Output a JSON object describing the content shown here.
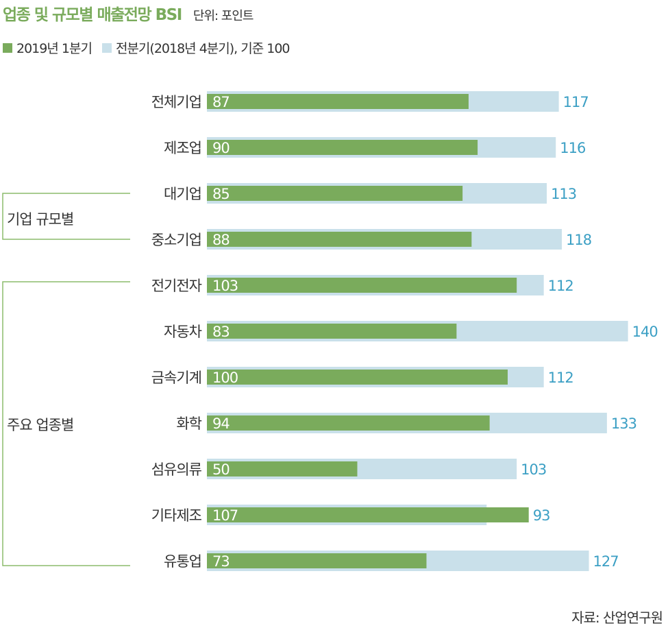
{
  "title": "업종 및 규모별 매출전망 BSI",
  "unit": "단위: 포인트",
  "legend": [
    {
      "label": "2019년 1분기",
      "color": "#7aab5c"
    },
    {
      "label": "전분기(2018년 4분기), 기준 100",
      "color": "#c9e0ea"
    }
  ],
  "groups": [
    {
      "label": "기업 규모별"
    },
    {
      "label": "주요 업종별"
    }
  ],
  "source": "자료: 산업연구원",
  "chart_data": {
    "type": "bar",
    "orientation": "horizontal",
    "title": "업종 및 규모별 매출전망 BSI",
    "categories": [
      "전체기업",
      "제조업",
      "대기업",
      "중소기업",
      "전기전자",
      "자동차",
      "금속기계",
      "화학",
      "섬유의류",
      "기타제조",
      "유통업"
    ],
    "series": [
      {
        "name": "2019년 1분기",
        "color": "#7aab5c",
        "values": [
          87,
          90,
          85,
          88,
          103,
          83,
          100,
          94,
          50,
          107,
          73
        ]
      },
      {
        "name": "전분기(2018년 4분기), 기준 100",
        "color": "#c9e0ea",
        "values": [
          117,
          116,
          113,
          118,
          112,
          140,
          112,
          133,
          103,
          93,
          127
        ]
      }
    ],
    "value_label_colors": {
      "current": "#ffffff",
      "previous": "#3b9fc4"
    },
    "xlim": [
      0,
      140
    ],
    "grid": false,
    "legend_position": "top-left"
  }
}
